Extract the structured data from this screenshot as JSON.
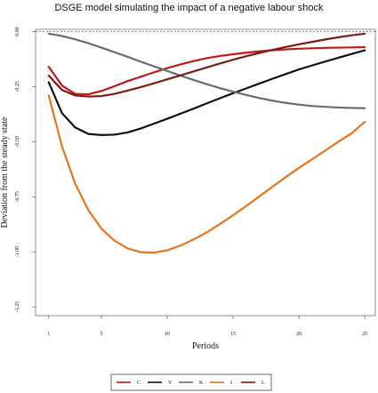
{
  "chart_data": {
    "type": "line",
    "title": "DSGE model simulating the impact of a negative labour shock",
    "xlabel": "Periods",
    "ylabel": "Deviation from the steady state",
    "xlim": [
      0,
      25.8
    ],
    "ylim": [
      -1.29,
      0.01
    ],
    "xticks": [
      1,
      5,
      10,
      15,
      20,
      25
    ],
    "yticks": [
      0.0,
      -0.25,
      -0.5,
      -0.75,
      -1.0,
      -1.25
    ],
    "ytick_labels": [
      "0.00",
      "-0.25",
      "-0.50",
      "-0.75",
      "-1.00",
      "-1.25"
    ],
    "reference_line": {
      "y": 0,
      "style": "dotted"
    },
    "grid": false,
    "legend_position": "bottom-center",
    "x": [
      1,
      2,
      3,
      4,
      5,
      6,
      7,
      8,
      9,
      10,
      11,
      12,
      13,
      14,
      15,
      16,
      17,
      18,
      19,
      20,
      21,
      22,
      23,
      24,
      25
    ],
    "series": [
      {
        "name": "C",
        "color": "#c0181a",
        "values": [
          -0.16,
          -0.245,
          -0.283,
          -0.285,
          -0.27,
          -0.248,
          -0.225,
          -0.205,
          -0.185,
          -0.166,
          -0.149,
          -0.134,
          -0.121,
          -0.111,
          -0.103,
          -0.096,
          -0.09,
          -0.085,
          -0.081,
          -0.078,
          -0.076,
          -0.074,
          -0.073,
          -0.072,
          -0.071
        ]
      },
      {
        "name": "Y",
        "color": "#111111",
        "values": [
          -0.23,
          -0.37,
          -0.435,
          -0.465,
          -0.47,
          -0.468,
          -0.458,
          -0.44,
          -0.418,
          -0.396,
          -0.373,
          -0.35,
          -0.326,
          -0.303,
          -0.28,
          -0.258,
          -0.236,
          -0.214,
          -0.193,
          -0.172,
          -0.154,
          -0.136,
          -0.119,
          -0.102,
          -0.085
        ]
      },
      {
        "name": "K",
        "color": "#6b6b6b",
        "values": [
          -0.01,
          -0.02,
          -0.035,
          -0.053,
          -0.073,
          -0.094,
          -0.115,
          -0.137,
          -0.158,
          -0.179,
          -0.2,
          -0.22,
          -0.239,
          -0.257,
          -0.273,
          -0.288,
          -0.302,
          -0.314,
          -0.324,
          -0.332,
          -0.338,
          -0.342,
          -0.345,
          -0.347,
          -0.348
        ]
      },
      {
        "name": "I",
        "color": "#e8741c",
        "values": [
          -0.29,
          -0.52,
          -0.69,
          -0.81,
          -0.895,
          -0.95,
          -0.985,
          -1.002,
          -1.004,
          -0.993,
          -0.972,
          -0.944,
          -0.912,
          -0.874,
          -0.834,
          -0.792,
          -0.748,
          -0.704,
          -0.661,
          -0.619,
          -0.58,
          -0.54,
          -0.5,
          -0.462,
          -0.41
        ]
      },
      {
        "name": "L",
        "color": "#7a1c14",
        "values": [
          -0.2,
          -0.265,
          -0.29,
          -0.295,
          -0.293,
          -0.283,
          -0.268,
          -0.252,
          -0.235,
          -0.217,
          -0.199,
          -0.181,
          -0.163,
          -0.145,
          -0.128,
          -0.112,
          -0.097,
          -0.083,
          -0.07,
          -0.058,
          -0.047,
          -0.036,
          -0.026,
          -0.017,
          -0.01
        ]
      }
    ]
  }
}
